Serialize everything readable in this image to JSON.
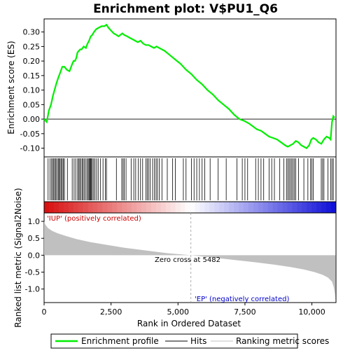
{
  "chart_data": {
    "type": "line",
    "title": "Enrichment plot: V$PU1_Q6",
    "top_panel": {
      "ylabel": "Enrichment score (ES)",
      "ylim": [
        -0.13,
        0.345
      ],
      "yticks": [
        -0.1,
        -0.05,
        0.0,
        0.05,
        0.1,
        0.15,
        0.2,
        0.25,
        0.3
      ],
      "ytick_labels": [
        "-0.10",
        "-0.05",
        "0.00",
        "0.05",
        "0.10",
        "0.15",
        "0.20",
        "0.25",
        "0.30"
      ],
      "series": [
        {
          "name": "Enrichment profile",
          "color": "#00ee00",
          "x": [
            0,
            100,
            180,
            260,
            330,
            390,
            450,
            520,
            600,
            680,
            760,
            850,
            950,
            1050,
            1100,
            1150,
            1200,
            1250,
            1300,
            1350,
            1400,
            1480,
            1560,
            1620,
            1680,
            1740,
            1800,
            1860,
            1950,
            2050,
            2150,
            2250,
            2330,
            2400,
            2500,
            2600,
            2700,
            2780,
            2850,
            2920,
            2990,
            3100,
            3200,
            3300,
            3400,
            3500,
            3600,
            3700,
            3800,
            3900,
            4000,
            4100,
            4200,
            4300,
            4400,
            4500,
            4700,
            4900,
            5100,
            5300,
            5500,
            5700,
            5900,
            6100,
            6300,
            6500,
            6700,
            6900,
            7100,
            7300,
            7450,
            7550,
            7650,
            7800,
            7950,
            8100,
            8250,
            8400,
            8550,
            8700,
            8850,
            9000,
            9100,
            9200,
            9300,
            9400,
            9500,
            9600,
            9700,
            9800,
            9900,
            9980,
            10050,
            10150,
            10250,
            10350,
            10450,
            10550,
            10650,
            10700,
            10750,
            10800,
            10850
          ],
          "y": [
            0.0,
            -0.01,
            0.03,
            0.05,
            0.08,
            0.1,
            0.12,
            0.14,
            0.16,
            0.18,
            0.18,
            0.17,
            0.165,
            0.19,
            0.2,
            0.2,
            0.21,
            0.23,
            0.235,
            0.24,
            0.24,
            0.25,
            0.245,
            0.26,
            0.27,
            0.285,
            0.29,
            0.3,
            0.31,
            0.315,
            0.32,
            0.32,
            0.325,
            0.315,
            0.305,
            0.295,
            0.29,
            0.285,
            0.29,
            0.295,
            0.29,
            0.285,
            0.28,
            0.275,
            0.27,
            0.265,
            0.27,
            0.26,
            0.255,
            0.255,
            0.25,
            0.245,
            0.25,
            0.245,
            0.24,
            0.235,
            0.22,
            0.205,
            0.19,
            0.17,
            0.155,
            0.135,
            0.12,
            0.1,
            0.085,
            0.065,
            0.05,
            0.035,
            0.015,
            0.0,
            -0.005,
            -0.01,
            -0.015,
            -0.025,
            -0.035,
            -0.04,
            -0.05,
            -0.06,
            -0.065,
            -0.07,
            -0.08,
            -0.09,
            -0.095,
            -0.09,
            -0.085,
            -0.075,
            -0.08,
            -0.09,
            -0.095,
            -0.1,
            -0.09,
            -0.07,
            -0.065,
            -0.07,
            -0.08,
            -0.085,
            -0.07,
            -0.06,
            -0.065,
            -0.07,
            -0.01,
            0.01,
            0.005
          ]
        }
      ]
    },
    "hits_panel": {
      "hit_positions": [
        150,
        220,
        280,
        320,
        360,
        400,
        440,
        480,
        530,
        560,
        600,
        640,
        680,
        720,
        760,
        870,
        1050,
        1120,
        1180,
        1250,
        1290,
        1330,
        1370,
        1420,
        1460,
        1500,
        1560,
        1610,
        1650,
        1680,
        1710,
        1740,
        1770,
        1800,
        1850,
        1900,
        1960,
        2020,
        2100,
        2200,
        2290,
        2330,
        2700,
        2900,
        2950,
        2990,
        3060,
        3250,
        3350,
        3420,
        3520,
        3600,
        3680,
        3800,
        3850,
        3900,
        3960,
        4050,
        4120,
        4180,
        4230,
        4300,
        4400,
        4600,
        4800,
        4900,
        5200,
        5300,
        5500,
        5600,
        5700,
        5800,
        5900,
        6000,
        6200,
        6500,
        6800,
        7200,
        7400,
        7500,
        7600,
        7900,
        8000,
        8100,
        8200,
        8400,
        8500,
        8600,
        8800,
        8950,
        9050,
        9100,
        9150,
        9200,
        9250,
        9300,
        9350,
        9400,
        9500,
        9700,
        9850,
        9950,
        10000,
        10050,
        10350,
        10400,
        10450,
        10600,
        10700,
        10750,
        10800
      ]
    },
    "metric_panel": {
      "ylabel": "Ranked list metric (Signal2Noise)",
      "xlabel": "Rank in Ordered Dataset",
      "ylim": [
        -1.4,
        1.25
      ],
      "yticks": [
        -1.0,
        -0.5,
        0.0,
        0.5,
        1.0
      ],
      "ytick_labels": [
        "-1.0",
        "-0.5",
        "0.0",
        "0.5",
        "1.0"
      ],
      "xlim": [
        0,
        10900
      ],
      "xticks": [
        0,
        2500,
        5000,
        7500,
        10000
      ],
      "xtick_labels": [
        "0",
        "2,500",
        "5,000",
        "7,500",
        "10,000"
      ],
      "x": [
        0,
        50,
        150,
        300,
        500,
        800,
        1200,
        1700,
        2300,
        3000,
        3800,
        4600,
        5482,
        6300,
        7100,
        7900,
        8600,
        9200,
        9700,
        10100,
        10400,
        10600,
        10750,
        10820,
        10860,
        10880
      ],
      "y": [
        1.0,
        0.9,
        0.8,
        0.72,
        0.65,
        0.57,
        0.48,
        0.39,
        0.31,
        0.22,
        0.14,
        0.06,
        0.0,
        -0.07,
        -0.14,
        -0.21,
        -0.28,
        -0.35,
        -0.42,
        -0.5,
        -0.58,
        -0.66,
        -0.78,
        -0.95,
        -1.15,
        -1.33
      ],
      "fill_color": "#c0c0c0",
      "annotations": {
        "positive": "'IUP' (positively correlated)",
        "zero_cross": "Zero cross at 5482",
        "negative": "'EP' (negatively correlated)"
      },
      "zero_cross": 5482
    },
    "legend": [
      {
        "label": "Enrichment profile",
        "color": "#00ee00"
      },
      {
        "label": "Hits",
        "color": "#000000"
      },
      {
        "label": "Ranking metric scores",
        "color": "#c0c0c0"
      }
    ]
  }
}
